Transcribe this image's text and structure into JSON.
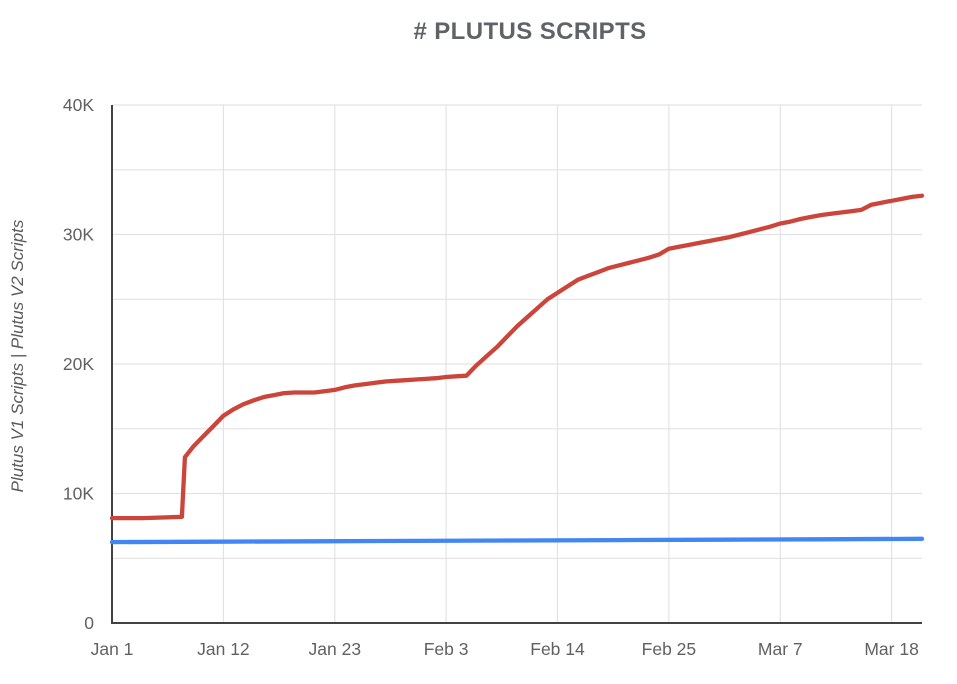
{
  "page": {
    "background": "#ffffff"
  },
  "chart_data": {
    "type": "line",
    "title": "# PLUTUS SCRIPTS",
    "ylabel": "Plutus V1 Scripts | Plutus V2 Scripts",
    "xlabel": "",
    "legend_position": "none",
    "grid": true,
    "ylim": [
      0,
      40000
    ],
    "x_unit": "days since Jan 1",
    "x_range": [
      0,
      80
    ],
    "y_major_ticks": [
      {
        "value": 0,
        "label": "0"
      },
      {
        "value": 10000,
        "label": "10K"
      },
      {
        "value": 20000,
        "label": "20K"
      },
      {
        "value": 30000,
        "label": "30K"
      },
      {
        "value": 40000,
        "label": "40K"
      }
    ],
    "y_minor_gridline_step": 5000,
    "x_ticks": [
      {
        "day": 0,
        "label": "Jan 1"
      },
      {
        "day": 11,
        "label": "Jan 12"
      },
      {
        "day": 22,
        "label": "Jan 23"
      },
      {
        "day": 33,
        "label": "Feb 3"
      },
      {
        "day": 44,
        "label": "Feb 14"
      },
      {
        "day": 55,
        "label": "Feb 25"
      },
      {
        "day": 66,
        "label": "Mar 7"
      },
      {
        "day": 77,
        "label": "Mar 18"
      }
    ],
    "colors": {
      "axis": "#424242",
      "gridline": "#e3e3e3",
      "tick_label": "#616161",
      "title": "#5f6368",
      "axis_title": "#5a5a5a"
    },
    "series": [
      {
        "name": "Plutus V1 Scripts",
        "color": "#cb453a",
        "stroke_width": 4.3,
        "points": [
          [
            0,
            8100
          ],
          [
            3,
            8100
          ],
          [
            5,
            8150
          ],
          [
            6.9,
            8200
          ],
          [
            7.2,
            12800
          ],
          [
            8,
            13600
          ],
          [
            9,
            14400
          ],
          [
            10,
            15200
          ],
          [
            11,
            16000
          ],
          [
            12,
            16500
          ],
          [
            13,
            16900
          ],
          [
            14,
            17200
          ],
          [
            15,
            17450
          ],
          [
            16,
            17600
          ],
          [
            17,
            17750
          ],
          [
            18,
            17800
          ],
          [
            19,
            17800
          ],
          [
            20,
            17800
          ],
          [
            21,
            17900
          ],
          [
            22,
            18000
          ],
          [
            23,
            18200
          ],
          [
            24,
            18350
          ],
          [
            25,
            18450
          ],
          [
            26,
            18550
          ],
          [
            27,
            18650
          ],
          [
            28,
            18700
          ],
          [
            29,
            18750
          ],
          [
            30,
            18800
          ],
          [
            31,
            18850
          ],
          [
            32,
            18900
          ],
          [
            33,
            19000
          ],
          [
            34,
            19050
          ],
          [
            35,
            19100
          ],
          [
            36,
            19900
          ],
          [
            37,
            20600
          ],
          [
            38,
            21300
          ],
          [
            39,
            22100
          ],
          [
            40,
            22900
          ],
          [
            41,
            23600
          ],
          [
            42,
            24300
          ],
          [
            43,
            25000
          ],
          [
            44,
            25500
          ],
          [
            45,
            26000
          ],
          [
            46,
            26500
          ],
          [
            47,
            26800
          ],
          [
            48,
            27100
          ],
          [
            49,
            27400
          ],
          [
            50,
            27600
          ],
          [
            51,
            27800
          ],
          [
            52,
            28000
          ],
          [
            53,
            28200
          ],
          [
            54,
            28450
          ],
          [
            55,
            28900
          ],
          [
            56,
            29050
          ],
          [
            57,
            29200
          ],
          [
            58,
            29350
          ],
          [
            59,
            29500
          ],
          [
            60,
            29650
          ],
          [
            61,
            29800
          ],
          [
            62,
            30000
          ],
          [
            63,
            30200
          ],
          [
            64,
            30400
          ],
          [
            65,
            30600
          ],
          [
            66,
            30850
          ],
          [
            67,
            31000
          ],
          [
            68,
            31200
          ],
          [
            69,
            31350
          ],
          [
            70,
            31500
          ],
          [
            71,
            31600
          ],
          [
            72,
            31700
          ],
          [
            73,
            31800
          ],
          [
            74,
            31900
          ],
          [
            75,
            32300
          ],
          [
            76,
            32450
          ],
          [
            77,
            32600
          ],
          [
            78,
            32750
          ],
          [
            79,
            32900
          ],
          [
            80,
            33000
          ]
        ]
      },
      {
        "name": "Plutus V2 Scripts",
        "color": "#4285f4",
        "stroke_width": 4.3,
        "points": [
          [
            0,
            6250
          ],
          [
            10,
            6280
          ],
          [
            20,
            6310
          ],
          [
            30,
            6340
          ],
          [
            40,
            6370
          ],
          [
            50,
            6400
          ],
          [
            60,
            6430
          ],
          [
            70,
            6465
          ],
          [
            80,
            6500
          ]
        ]
      }
    ]
  }
}
